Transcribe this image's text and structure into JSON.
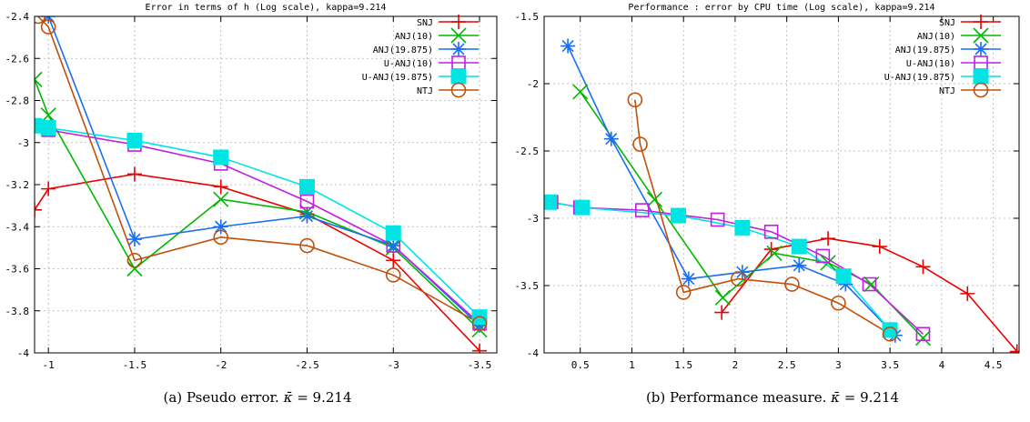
{
  "figure": {
    "captions": [
      {
        "label": "(a)",
        "text": "Pseudo error.",
        "kappa_symbol": "κ̄",
        "kappa_value": "= 9.214"
      },
      {
        "label": "(b)",
        "text": "Performance measure.",
        "kappa_symbol": "κ̄",
        "kappa_value": "= 9.214"
      }
    ]
  },
  "chart_data": [
    {
      "type": "line",
      "title": "Error in terms of h (Log scale), kappa=9.214",
      "xlabel": "",
      "ylabel": "",
      "xlim": [
        -0.92,
        -3.6
      ],
      "ylim": [
        -4,
        -2.4
      ],
      "xticks": [
        -1,
        -1.5,
        -2,
        -2.5,
        -3,
        -3.5
      ],
      "xtick_labels": [
        "-1",
        "-1.5",
        "-2",
        "-2.5",
        "-3",
        "-3.5"
      ],
      "yticks": [
        -4,
        -3.8,
        -3.6,
        -3.4,
        -3.2,
        -3,
        -2.8,
        -2.6,
        -2.4
      ],
      "ytick_labels": [
        "-4",
        "-3.8",
        "-3.6",
        "-3.4",
        "-3.2",
        "-3",
        "-2.8",
        "-2.6",
        "-2.4"
      ],
      "grid": true,
      "legend": "top-right",
      "series": [
        {
          "name": "SNJ",
          "color": "#ee0000",
          "marker": "plus",
          "points": [
            [
              -0.92,
              -3.32
            ],
            [
              -1,
              -3.22
            ],
            [
              -1.5,
              -3.15
            ],
            [
              -2,
              -3.21
            ],
            [
              -2.5,
              -3.34
            ],
            [
              -3,
              -3.56
            ],
            [
              -3.5,
              -3.99
            ]
          ]
        },
        {
          "name": "ANJ(10)",
          "color": "#00b800",
          "marker": "x",
          "points": [
            [
              -0.92,
              -2.7
            ],
            [
              -1,
              -2.87
            ],
            [
              -1.5,
              -3.6
            ],
            [
              -2,
              -3.27
            ],
            [
              -2.5,
              -3.33
            ],
            [
              -3,
              -3.5
            ],
            [
              -3.5,
              -3.89
            ]
          ]
        },
        {
          "name": "ANJ(19.875)",
          "color": "#1a6ef5",
          "marker": "star",
          "points": [
            [
              -1,
              -2.4
            ],
            [
              -1.5,
              -3.46
            ],
            [
              -2,
              -3.4
            ],
            [
              -2.5,
              -3.35
            ],
            [
              -3,
              -3.49
            ],
            [
              -3.5,
              -3.87
            ]
          ]
        },
        {
          "name": "U-ANJ(10)",
          "color": "#c020e0",
          "marker": "square",
          "points": [
            [
              -0.92,
              -2.92
            ],
            [
              -1,
              -2.94
            ],
            [
              -1.5,
              -3.01
            ],
            [
              -2,
              -3.1
            ],
            [
              -2.5,
              -3.28
            ],
            [
              -3,
              -3.49
            ],
            [
              -3.5,
              -3.86
            ]
          ]
        },
        {
          "name": "U-ANJ(19.875)",
          "color": "#00e4e4",
          "marker": "filled-square",
          "points": [
            [
              -0.92,
              -2.92
            ],
            [
              -1,
              -2.93
            ],
            [
              -1.5,
              -2.99
            ],
            [
              -2,
              -3.07
            ],
            [
              -2.5,
              -3.21
            ],
            [
              -3,
              -3.43
            ],
            [
              -3.5,
              -3.83
            ]
          ]
        },
        {
          "name": "NTJ",
          "color": "#c0500a",
          "marker": "circle",
          "points": [
            [
              -0.94,
              -2.4
            ],
            [
              -1,
              -2.45
            ],
            [
              -1.5,
              -3.56
            ],
            [
              -2,
              -3.45
            ],
            [
              -2.5,
              -3.49
            ],
            [
              -3,
              -3.63
            ],
            [
              -3.5,
              -3.86
            ]
          ]
        }
      ]
    },
    {
      "type": "line",
      "title": "Performance : error by CPU time (Log scale), kappa=9.214",
      "xlabel": "",
      "ylabel": "",
      "xlim": [
        0.15,
        4.75
      ],
      "ylim": [
        -4,
        -1.5
      ],
      "xticks": [
        0.5,
        1,
        1.5,
        2,
        2.5,
        3,
        3.5,
        4,
        4.5
      ],
      "xtick_labels": [
        "0.5",
        "1",
        "1.5",
        "2",
        "2.5",
        "3",
        "3.5",
        "4",
        "4.5"
      ],
      "yticks": [
        -4,
        -3.5,
        -3,
        -2.5,
        -2,
        -1.5
      ],
      "ytick_labels": [
        "-4",
        "-3.5",
        "-3",
        "-2.5",
        "-2",
        "-1.5"
      ],
      "grid": true,
      "legend": "top-right",
      "series": [
        {
          "name": "SNJ",
          "color": "#ee0000",
          "marker": "plus",
          "points": [
            [
              1.87,
              -3.7
            ],
            [
              2.35,
              -3.23
            ],
            [
              2.9,
              -3.15
            ],
            [
              3.4,
              -3.21
            ],
            [
              3.82,
              -3.36
            ],
            [
              4.25,
              -3.56
            ],
            [
              4.73,
              -3.99
            ]
          ]
        },
        {
          "name": "ANJ(10)",
          "color": "#00b800",
          "marker": "x",
          "points": [
            [
              0.5,
              -2.06
            ],
            [
              1.22,
              -2.86
            ],
            [
              1.88,
              -3.59
            ],
            [
              2.38,
              -3.26
            ],
            [
              2.9,
              -3.33
            ],
            [
              3.32,
              -3.49
            ],
            [
              3.82,
              -3.89
            ]
          ]
        },
        {
          "name": "ANJ(19.875)",
          "color": "#1a6ef5",
          "marker": "star",
          "points": [
            [
              0.38,
              -1.72
            ],
            [
              0.8,
              -2.41
            ],
            [
              1.55,
              -3.45
            ],
            [
              2.07,
              -3.4
            ],
            [
              2.62,
              -3.35
            ],
            [
              3.07,
              -3.49
            ],
            [
              3.55,
              -3.87
            ]
          ]
        },
        {
          "name": "U-ANJ(10)",
          "color": "#c020e0",
          "marker": "square",
          "points": [
            [
              0.22,
              -2.88
            ],
            [
              0.5,
              -2.92
            ],
            [
              1.1,
              -2.94
            ],
            [
              1.83,
              -3.01
            ],
            [
              2.35,
              -3.1
            ],
            [
              2.85,
              -3.28
            ],
            [
              3.3,
              -3.49
            ],
            [
              3.82,
              -3.86
            ]
          ]
        },
        {
          "name": "U-ANJ(19.875)",
          "color": "#00e4e4",
          "marker": "filled-square",
          "points": [
            [
              0.2,
              -2.88
            ],
            [
              0.52,
              -2.92
            ],
            [
              1.45,
              -2.98
            ],
            [
              2.07,
              -3.07
            ],
            [
              2.62,
              -3.21
            ],
            [
              3.05,
              -3.43
            ],
            [
              3.5,
              -3.83
            ]
          ]
        },
        {
          "name": "NTJ",
          "color": "#c0500a",
          "marker": "circle",
          "points": [
            [
              1.03,
              -2.12
            ],
            [
              1.08,
              -2.45
            ],
            [
              1.5,
              -3.55
            ],
            [
              2.03,
              -3.45
            ],
            [
              2.55,
              -3.49
            ],
            [
              3.0,
              -3.63
            ],
            [
              3.5,
              -3.86
            ]
          ]
        }
      ]
    }
  ]
}
